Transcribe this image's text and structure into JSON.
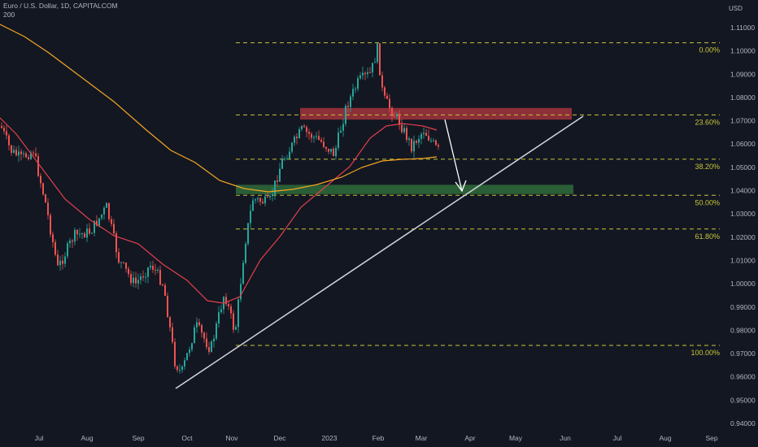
{
  "header": {
    "symbol_line": "Euro / U.S. Dollar, 1D, CAPITALCOM",
    "indicator_line": "200"
  },
  "chart_data": {
    "type": "candlestick",
    "currency_label": "USD",
    "y_axis": {
      "min": 0.94,
      "max": 1.11,
      "ticks": [
        "0.94000",
        "0.95000",
        "0.96000",
        "0.97000",
        "0.98000",
        "0.99000",
        "1.00000",
        "1.01000",
        "1.02000",
        "1.03000",
        "1.04000",
        "1.05000",
        "1.06000",
        "1.07000",
        "1.08000",
        "1.09000",
        "1.10000",
        "1.11000"
      ]
    },
    "x_axis_labels": [
      "Jul",
      "Aug",
      "Sep",
      "Oct",
      "Nov",
      "Dec",
      "2023",
      "Feb",
      "Mar",
      "Apr",
      "May",
      "Jun",
      "Jul",
      "Aug",
      "Sep"
    ],
    "fib_levels": [
      {
        "label": "0.00%",
        "price": 1.1035
      },
      {
        "label": "23.60%",
        "price": 1.0725
      },
      {
        "label": "38.20%",
        "price": 1.0535
      },
      {
        "label": "50.00%",
        "price": 1.038
      },
      {
        "label": "61.80%",
        "price": 1.0235
      },
      {
        "label": "100.00%",
        "price": 0.9735
      }
    ],
    "zones": [
      {
        "name": "resistance",
        "color": "#a3343c",
        "top": 1.0755,
        "bottom": 1.0705
      },
      {
        "name": "support",
        "color": "#2f6b3a",
        "top": 1.0425,
        "bottom": 1.0385
      }
    ],
    "colors": {
      "up": "#26a69a",
      "down": "#ef5350",
      "ma_short": "#e2404d",
      "ma_long": "#f5a623",
      "fib": "#c8c43a",
      "trendline": "#d1d4dc"
    }
  }
}
